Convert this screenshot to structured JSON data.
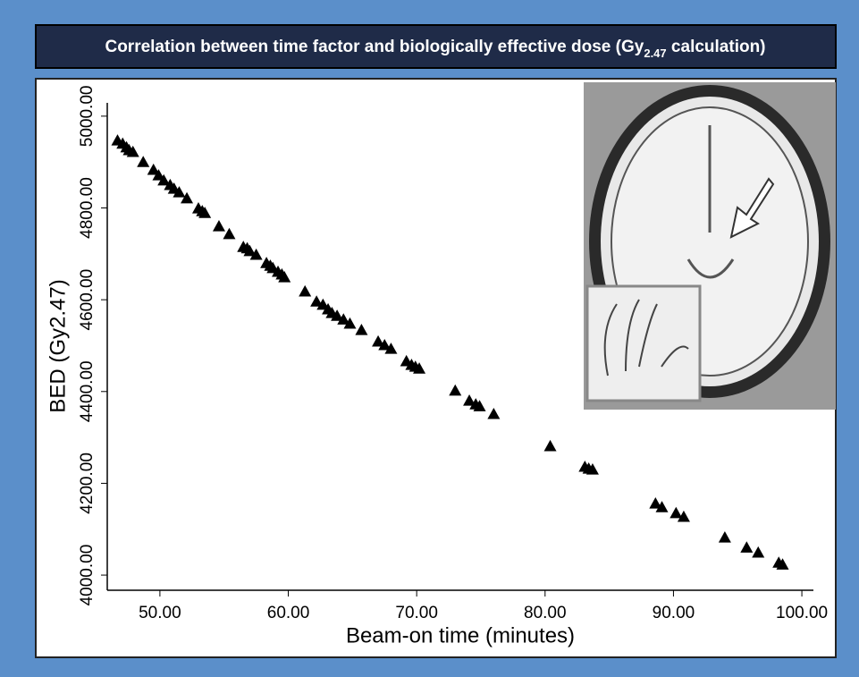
{
  "chart_data": {
    "type": "scatter",
    "title": {
      "text": "Correlation between time factor and biologically effective dose (Gy",
      "subscript": "2.47",
      "suffix": " calculation)"
    },
    "x_label": "Beam-on time (minutes)",
    "y_label": "BED (Gy2.47)",
    "marker": "triangle",
    "color": "#000000",
    "xlim": [
      45.9,
      100.9
    ],
    "xticks": [
      {
        "value": 50,
        "label": "50.00"
      },
      {
        "value": 60,
        "label": "60.00"
      },
      {
        "value": 70,
        "label": "70.00"
      },
      {
        "value": 80,
        "label": "80.00"
      },
      {
        "value": 90,
        "label": "90.00"
      },
      {
        "value": 100,
        "label": "100.00"
      }
    ],
    "ylim": [
      3967,
      5029
    ],
    "yticks": [
      {
        "value": 4000,
        "label": "4000.00"
      },
      {
        "value": 4200,
        "label": "4200.00"
      },
      {
        "value": 4400,
        "label": "4400.00"
      },
      {
        "value": 4600,
        "label": "4600.00"
      },
      {
        "value": 4800,
        "label": "4800.00"
      },
      {
        "value": 5000,
        "label": "5000.00"
      }
    ],
    "x": [
      46.7,
      47.1,
      47.4,
      47.6,
      47.9,
      48.7,
      49.5,
      49.9,
      50.3,
      50.8,
      51.1,
      51.5,
      52.1,
      53.0,
      53.3,
      53.5,
      54.6,
      55.4,
      56.5,
      56.8,
      57.0,
      57.5,
      58.3,
      58.6,
      58.8,
      59.2,
      59.5,
      59.7,
      61.3,
      62.2,
      62.7,
      63.1,
      63.4,
      63.8,
      64.3,
      64.8,
      65.7,
      67.0,
      67.5,
      68.0,
      69.2,
      69.6,
      69.9,
      70.2,
      73.0,
      74.1,
      74.6,
      74.9,
      76.0,
      80.4,
      83.1,
      83.4,
      83.7,
      88.6,
      89.1,
      90.2,
      90.8,
      94.0,
      95.7,
      96.6,
      98.2,
      98.5
    ],
    "values": [
      4947,
      4940,
      4932,
      4926,
      4922,
      4900,
      4883,
      4871,
      4860,
      4850,
      4842,
      4834,
      4821,
      4799,
      4793,
      4789,
      4760,
      4743,
      4715,
      4712,
      4706,
      4698,
      4680,
      4674,
      4669,
      4661,
      4655,
      4649,
      4618,
      4596,
      4589,
      4579,
      4571,
      4565,
      4557,
      4548,
      4534,
      4509,
      4501,
      4493,
      4466,
      4458,
      4454,
      4450,
      4402,
      4380,
      4372,
      4368,
      4351,
      4281,
      4236,
      4232,
      4230,
      4156,
      4148,
      4135,
      4127,
      4082,
      4060,
      4049,
      4027,
      4023
    ]
  }
}
